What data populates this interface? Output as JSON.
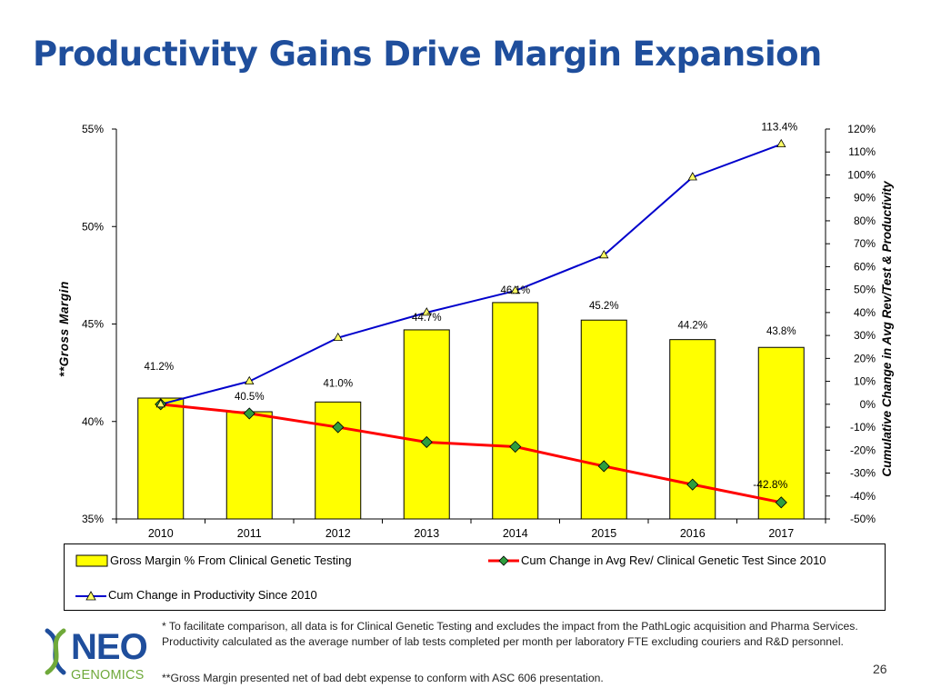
{
  "title": "Productivity Gains Drive Margin Expansion",
  "colors": {
    "title": "#1f4e9c",
    "bar_fill": "#ffff00",
    "revenue_line": "#ff0000",
    "revenue_marker": "#2e9e3e",
    "productivity_line": "#0000cc",
    "productivity_marker": "#ffff66",
    "logo_blue": "#1f4e9c",
    "logo_green": "#6fa93a"
  },
  "chart_data": {
    "type": "bar+line",
    "categories": [
      "2010",
      "2011",
      "2012",
      "2013",
      "2014",
      "2015",
      "2016",
      "2017"
    ],
    "left_axis": {
      "label": "**Gross Margin",
      "range": [
        35,
        55
      ],
      "ticks": [
        "35%",
        "40%",
        "45%",
        "50%",
        "55%"
      ]
    },
    "right_axis": {
      "label": "Cumulative Change in Avg Rev/Test & Productivity",
      "range": [
        -50,
        120
      ],
      "ticks": [
        "-50%",
        "-40%",
        "-30%",
        "-20%",
        "-10%",
        "0%",
        "10%",
        "20%",
        "30%",
        "40%",
        "50%",
        "60%",
        "70%",
        "80%",
        "90%",
        "100%",
        "110%",
        "120%"
      ]
    },
    "series": [
      {
        "name": "Gross Margin % From Clinical Genetic Testing",
        "type": "bar",
        "axis": "left",
        "values": [
          41.2,
          40.5,
          41.0,
          44.7,
          46.1,
          45.2,
          44.2,
          43.8
        ],
        "labels": [
          "41.2%",
          "40.5%",
          "41.0%",
          "44.7%",
          "46.1%",
          "45.2%",
          "44.2%",
          "43.8%"
        ]
      },
      {
        "name": "Cum Change in Avg Rev/ Clinical Genetic Test Since 2010",
        "type": "line",
        "axis": "right",
        "values": [
          0,
          -4,
          -10,
          -16.5,
          -18.5,
          -27,
          -35,
          -42.8
        ],
        "end_label": "-42.8%"
      },
      {
        "name": "Cum Change in Productivity Since 2010",
        "type": "line",
        "axis": "right",
        "values": [
          0,
          10,
          29,
          40,
          49.5,
          65,
          99,
          113.4
        ],
        "end_label": "113.4%"
      }
    ]
  },
  "footnote": "* To facilitate comparison, all data is for Clinical Genetic Testing and excludes the impact from the PathLogic acquisition and Pharma Services.  Productivity calculated as the average number of lab tests completed per month per laboratory FTE excluding couriers and R&D personnel.",
  "footnote2": "**Gross Margin presented net of bad debt expense to conform with ASC 606 presentation.",
  "page_number": "26",
  "logo": {
    "name": "NEO",
    "sub": "GENOMICS"
  }
}
